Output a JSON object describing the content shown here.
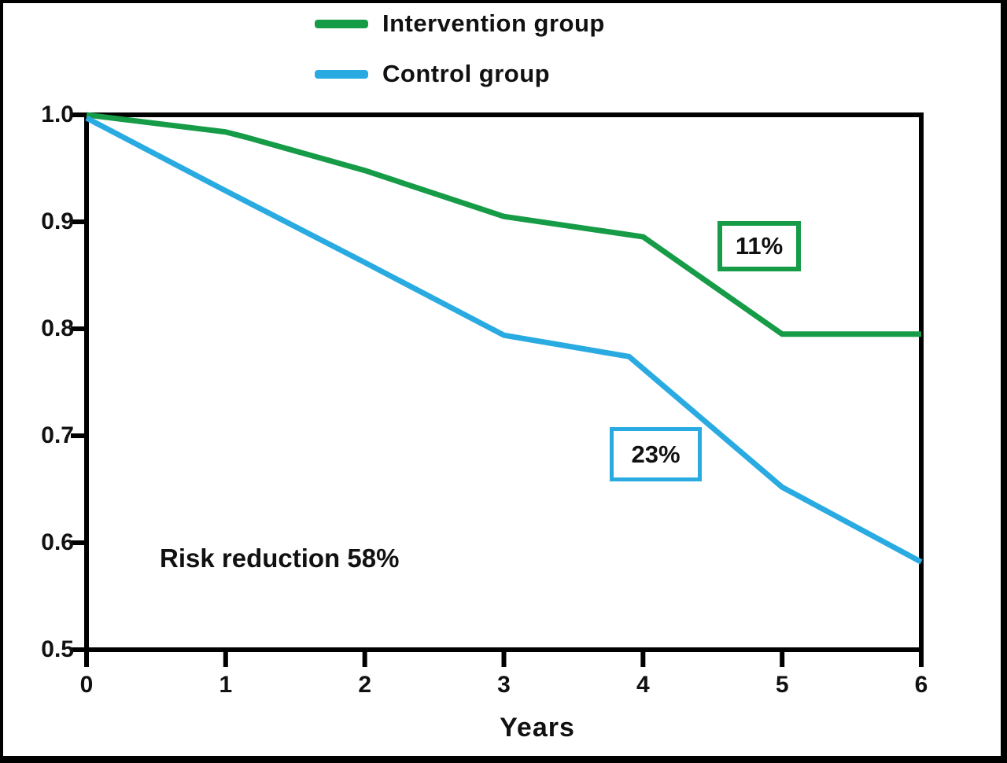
{
  "chart_data": {
    "type": "line",
    "title": "",
    "xlabel": "Years",
    "ylabel": "",
    "xlim": [
      0,
      6
    ],
    "ylim": [
      0.5,
      1.0
    ],
    "x_tick_values": [
      0,
      1,
      2,
      3,
      4,
      5,
      6
    ],
    "x_tick_labels": [
      "0",
      "1",
      "2",
      "3",
      "4",
      "5",
      "6"
    ],
    "y_tick_values": [
      1.0,
      0.9,
      0.8,
      0.7,
      0.6,
      0.5
    ],
    "y_tick_labels": [
      "1.0",
      "0.9",
      "0.8",
      "0.7",
      "0.6",
      "0.5"
    ],
    "grid": false,
    "frame": true,
    "legend_position": "above-plot-top-center",
    "axis_color": "#000000",
    "series": [
      {
        "name": "Intervention group",
        "color": "#169B47",
        "points": [
          [
            0,
            1.0
          ],
          [
            1,
            0.984
          ],
          [
            1.15,
            0.979
          ],
          [
            2,
            0.948
          ],
          [
            3,
            0.905
          ],
          [
            4,
            0.886
          ],
          [
            5,
            0.795
          ],
          [
            6,
            0.795
          ]
        ]
      },
      {
        "name": "Control group",
        "color": "#29ABE2",
        "points": [
          [
            0,
            0.997
          ],
          [
            1,
            0.929
          ],
          [
            2,
            0.862
          ],
          [
            3,
            0.794
          ],
          [
            3.9,
            0.774
          ],
          [
            5,
            0.652
          ],
          [
            6,
            0.582
          ]
        ]
      }
    ],
    "annotations": {
      "intervention_box": {
        "text": "11%",
        "border_color": "#169B47"
      },
      "control_box": {
        "text": "23%",
        "border_color": "#29ABE2"
      },
      "risk_reduction": {
        "text": "Risk reduction 58%"
      }
    }
  }
}
